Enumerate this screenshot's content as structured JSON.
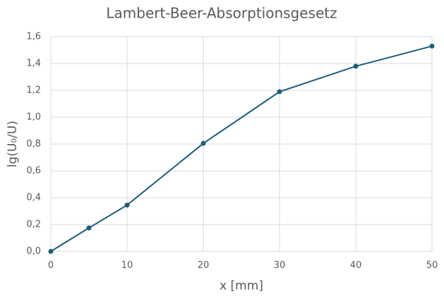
{
  "chart_data": {
    "type": "line",
    "title": "Lambert-Beer-Absorptionsgesetz",
    "xlabel": "x [mm]",
    "ylabel": "lg(U₀/U)",
    "x": [
      0,
      5,
      10,
      20,
      30,
      40,
      50
    ],
    "series": [
      {
        "name": "lg(U₀/U)",
        "color": "#1d5c78",
        "values": [
          0,
          0.175,
          0.345,
          0.805,
          1.19,
          1.38,
          1.53
        ]
      }
    ],
    "xlim": [
      0,
      50
    ],
    "xticks": [
      0,
      10,
      20,
      30,
      40,
      50
    ],
    "ylim": [
      0,
      1.6
    ],
    "yticks": [
      {
        "value": 0,
        "label": "0,0"
      },
      {
        "value": 0.2,
        "label": "0,2"
      },
      {
        "value": 0.4,
        "label": "0,4"
      },
      {
        "value": 0.6,
        "label": "0,6"
      },
      {
        "value": 0.8,
        "label": "0,8"
      },
      {
        "value": 1.0,
        "label": "1,0"
      },
      {
        "value": 1.2,
        "label": "1,2"
      },
      {
        "value": 1.4,
        "label": "1,4"
      },
      {
        "value": 1.6,
        "label": "1,6"
      }
    ],
    "grid": true
  }
}
